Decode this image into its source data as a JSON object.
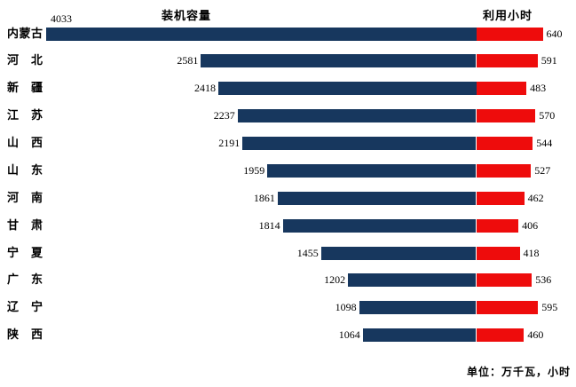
{
  "chart_data": {
    "type": "bar",
    "subtype": "tornado",
    "orientation": "horizontal",
    "categories": [
      "内蒙古",
      "河北",
      "新疆",
      "江苏",
      "山西",
      "山东",
      "河南",
      "甘肃",
      "宁夏",
      "广东",
      "辽宁",
      "陕西"
    ],
    "series": [
      {
        "name": "装机容量",
        "side": "left",
        "color": "#17375E",
        "values": [
          4033,
          2581,
          2418,
          2237,
          2191,
          1959,
          1861,
          1814,
          1455,
          1202,
          1098,
          1064
        ]
      },
      {
        "name": "利用小时",
        "side": "right",
        "color": "#EE0C0C",
        "values": [
          640,
          591,
          483,
          570,
          544,
          527,
          462,
          406,
          418,
          536,
          595,
          460
        ]
      }
    ],
    "value_labels": "outside-end",
    "gridlines": false,
    "legend_position": "titles-above-columns",
    "annotations": [
      "单位：万千瓦，小时"
    ]
  },
  "colors": {
    "background": "#FFFFFF",
    "text": "#000000",
    "capacity_bar": "#17375E",
    "hours_bar": "#EE0C0C"
  }
}
